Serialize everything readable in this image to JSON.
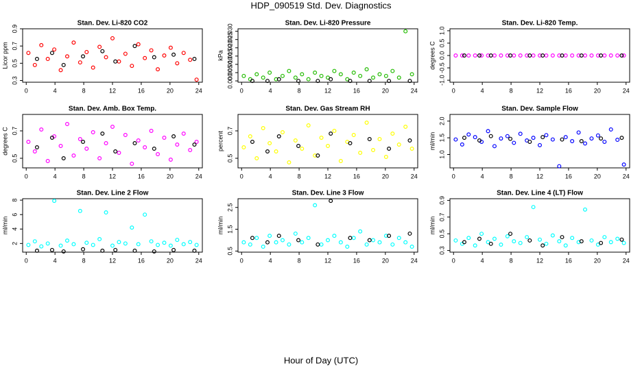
{
  "title": "HDP_090519  Std. Dev. Diagnostics",
  "x_label": "Hour of Day (UTC)",
  "chart_data": [
    {
      "type": "scatter",
      "title": "Stan. Dev. Li-820 CO2",
      "y_label": "Licor ppm",
      "xlim": [
        -0.5,
        24.5
      ],
      "xticks": [
        0,
        4,
        8,
        12,
        16,
        20,
        24
      ],
      "ylim": [
        0.28,
        0.9
      ],
      "yticks": [
        0.3,
        0.5,
        0.7,
        0.9
      ],
      "series": [
        {
          "color": "#ff0000",
          "x": [
            0.3,
            1.2,
            2.1,
            3.0,
            3.9,
            4.8,
            5.7,
            6.6,
            7.5,
            8.4,
            9.3,
            10.2,
            11.1,
            12.0,
            12.9,
            13.8,
            14.7,
            15.6,
            16.5,
            17.4,
            18.3,
            19.2,
            20.1,
            21.0,
            21.9,
            22.8,
            23.7
          ],
          "values": [
            0.62,
            0.48,
            0.71,
            0.55,
            0.66,
            0.42,
            0.58,
            0.74,
            0.51,
            0.63,
            0.45,
            0.69,
            0.57,
            0.79,
            0.52,
            0.61,
            0.47,
            0.72,
            0.56,
            0.65,
            0.43,
            0.59,
            0.68,
            0.5,
            0.62,
            0.54,
            0.31
          ]
        },
        {
          "color": "#000000",
          "x": [
            1.5,
            3.6,
            5.2,
            7.9,
            10.6,
            12.4,
            15.1,
            17.8,
            20.5,
            23.4
          ],
          "values": [
            0.55,
            0.62,
            0.48,
            0.58,
            0.64,
            0.52,
            0.7,
            0.57,
            0.6,
            0.55
          ]
        }
      ]
    },
    {
      "type": "scatter",
      "title": "Stan. Dev. Li-820 Pressure",
      "y_label": "kPa",
      "xlim": [
        -0.5,
        24.5
      ],
      "xticks": [
        0,
        4,
        8,
        12,
        16,
        20,
        24
      ],
      "ylim": [
        -0.0008,
        0.0315
      ],
      "yticks": [
        {
          "value": 0,
          "label": "0.000"
        },
        {
          "value": 0.005,
          "label": "0.005"
        },
        {
          "value": 0.01,
          "label": "0.010"
        },
        {
          "value": 0.015,
          "label": "0.015"
        },
        {
          "value": 0.02,
          "label": "0.020"
        },
        {
          "value": 0.025,
          "label": "0.025"
        },
        {
          "value": 0.03,
          "label": "0.030"
        }
      ],
      "series": [
        {
          "color": "#22bb00",
          "x": [
            0.3,
            1.2,
            2.1,
            3.0,
            3.9,
            4.8,
            5.7,
            6.6,
            7.5,
            8.4,
            9.3,
            10.2,
            11.1,
            12.0,
            12.9,
            13.8,
            14.7,
            15.6,
            16.5,
            17.4,
            18.3,
            19.2,
            20.1,
            21.0,
            21.9,
            22.8,
            23.7
          ],
          "values": [
            0.003,
            0.001,
            0.004,
            0.002,
            0.005,
            0.001,
            0.003,
            0.006,
            0.002,
            0.004,
            0.001,
            0.005,
            0.003,
            0.002,
            0.006,
            0.004,
            0.001,
            0.005,
            0.003,
            0.007,
            0.002,
            0.004,
            0.003,
            0.006,
            0.002,
            0.03,
            0.004
          ]
        },
        {
          "color": "#000000",
          "x": [
            1.5,
            3.6,
            5.2,
            7.9,
            10.6,
            12.4,
            15.1,
            17.8,
            20.5,
            23.4
          ],
          "values": [
            0,
            0,
            0.001,
            0,
            0,
            0.001,
            0,
            0,
            0,
            0
          ]
        }
      ]
    },
    {
      "type": "scatter",
      "title": "Stan. Dev. Li-820 Temp.",
      "y_label": "degrees C",
      "xlim": [
        -0.5,
        24.5
      ],
      "xticks": [
        0,
        4,
        8,
        12,
        16,
        20,
        24
      ],
      "ylim": [
        -1.08,
        1.08
      ],
      "yticks": [
        {
          "value": -1,
          "label": "-1.0"
        },
        {
          "value": -0.5,
          "label": "-0.5"
        },
        {
          "value": 0,
          "label": "0.0"
        },
        {
          "value": 0.5,
          "label": "0.5"
        },
        {
          "value": 1,
          "label": "1.0"
        }
      ],
      "series": [
        {
          "color": "#ff00ff",
          "x": [
            0.3,
            1.2,
            2.1,
            3.0,
            3.9,
            4.8,
            5.7,
            6.6,
            7.5,
            8.4,
            9.3,
            10.2,
            11.1,
            12.0,
            12.9,
            13.8,
            14.7,
            15.6,
            16.5,
            17.4,
            18.3,
            19.2,
            20.1,
            21.0,
            21.9,
            22.8,
            23.7
          ],
          "values": [
            0,
            0,
            0,
            0,
            0,
            0,
            0,
            0,
            0,
            0,
            0,
            0,
            0,
            0,
            0,
            0,
            0,
            0,
            0,
            0,
            0,
            0,
            0,
            0,
            0,
            0,
            0
          ]
        },
        {
          "color": "#000000",
          "x": [
            1.5,
            3.6,
            5.2,
            7.9,
            10.6,
            12.4,
            15.1,
            17.8,
            20.5,
            23.4
          ],
          "values": [
            0,
            0,
            0,
            0,
            0,
            0,
            0,
            0,
            0,
            0
          ]
        }
      ]
    },
    {
      "type": "scatter",
      "title": "Stan. Dev. Amb. Box Temp.",
      "y_label": "degrees C",
      "xlim": [
        -0.5,
        24.5
      ],
      "xticks": [
        0,
        4,
        8,
        12,
        16,
        20,
        24
      ],
      "ylim": [
        0.43,
        0.82
      ],
      "yticks": [
        0.5,
        0.7
      ],
      "series": [
        {
          "color": "#ff00ff",
          "x": [
            0.3,
            1.2,
            2.1,
            3.0,
            3.9,
            4.8,
            5.7,
            6.6,
            7.5,
            8.4,
            9.3,
            10.2,
            11.1,
            12.0,
            12.9,
            13.8,
            14.7,
            15.6,
            16.5,
            17.4,
            18.3,
            19.2,
            20.1,
            21.0,
            21.9,
            22.8,
            23.7
          ],
          "values": [
            0.62,
            0.55,
            0.71,
            0.48,
            0.66,
            0.59,
            0.75,
            0.52,
            0.64,
            0.57,
            0.69,
            0.5,
            0.61,
            0.73,
            0.54,
            0.67,
            0.46,
            0.63,
            0.58,
            0.7,
            0.53,
            0.65,
            0.49,
            0.6,
            0.68,
            0.56,
            0.62
          ]
        },
        {
          "color": "#000000",
          "x": [
            1.5,
            3.6,
            5.2,
            7.9,
            10.6,
            12.4,
            15.1,
            17.8,
            20.5,
            23.4
          ],
          "values": [
            0.58,
            0.65,
            0.5,
            0.62,
            0.68,
            0.55,
            0.61,
            0.57,
            0.66,
            0.6
          ]
        }
      ]
    },
    {
      "type": "scatter",
      "title": "Stan. Dev. Gas Stream RH",
      "y_label": "percent",
      "xlim": [
        -0.5,
        24.5
      ],
      "xticks": [
        0,
        4,
        8,
        12,
        16,
        20,
        24
      ],
      "ylim": [
        0.43,
        0.82
      ],
      "yticks": [
        0.5,
        0.7
      ],
      "series": [
        {
          "color": "#ffff00",
          "x": [
            0.3,
            1.2,
            2.1,
            3.0,
            3.9,
            4.8,
            5.7,
            6.6,
            7.5,
            8.4,
            9.3,
            10.2,
            11.1,
            12.0,
            12.9,
            13.8,
            14.7,
            15.6,
            16.5,
            17.4,
            18.3,
            19.2,
            20.1,
            21.0,
            21.9,
            22.8,
            23.7
          ],
          "values": [
            0.58,
            0.66,
            0.5,
            0.72,
            0.61,
            0.55,
            0.69,
            0.47,
            0.63,
            0.57,
            0.74,
            0.52,
            0.65,
            0.59,
            0.7,
            0.48,
            0.62,
            0.67,
            0.54,
            0.76,
            0.56,
            0.64,
            0.51,
            0.68,
            0.6,
            0.73,
            0.57
          ]
        },
        {
          "color": "#000000",
          "x": [
            1.5,
            3.6,
            5.2,
            7.9,
            10.6,
            12.4,
            15.1,
            17.8,
            20.5,
            23.4
          ],
          "values": [
            0.62,
            0.55,
            0.66,
            0.59,
            0.52,
            0.68,
            0.61,
            0.64,
            0.57,
            0.63
          ]
        }
      ]
    },
    {
      "type": "scatter",
      "title": "Stan. Dev. Sample Flow",
      "y_label": "ml/min",
      "xlim": [
        -0.5,
        24.5
      ],
      "xticks": [
        0,
        4,
        8,
        12,
        16,
        20,
        24
      ],
      "ylim": [
        0.6,
        2.2
      ],
      "yticks": [
        {
          "value": 1,
          "label": "1.0"
        },
        {
          "value": 1.5,
          "label": "1.5"
        },
        {
          "value": 2,
          "label": "2.0"
        }
      ],
      "series": [
        {
          "color": "#0000ff",
          "x": [
            0.3,
            1.2,
            2.1,
            3.0,
            3.9,
            4.8,
            5.7,
            6.6,
            7.5,
            8.4,
            9.3,
            10.2,
            11.1,
            12.0,
            12.9,
            13.8,
            14.7,
            15.6,
            16.5,
            17.4,
            18.3,
            19.2,
            20.1,
            21.0,
            21.9,
            22.8,
            23.7
          ],
          "values": [
            1.45,
            1.3,
            1.6,
            1.52,
            1.38,
            1.7,
            1.25,
            1.48,
            1.55,
            1.35,
            1.62,
            1.42,
            1.5,
            1.28,
            1.58,
            1.45,
            0.65,
            1.52,
            1.4,
            1.66,
            1.33,
            1.48,
            1.57,
            1.38,
            1.75,
            1.44,
            0.7
          ]
        },
        {
          "color": "#000000",
          "x": [
            1.5,
            3.6,
            5.2,
            7.9,
            10.6,
            12.4,
            15.1,
            17.8,
            20.5,
            23.4
          ],
          "values": [
            1.5,
            1.42,
            1.55,
            1.47,
            1.38,
            1.52,
            1.45,
            1.4,
            1.48,
            1.5
          ]
        }
      ]
    },
    {
      "type": "scatter",
      "title": "Stan. Dev. Line 2 Flow",
      "y_label": "ml/min",
      "xlim": [
        -0.5,
        24.5
      ],
      "xticks": [
        0,
        4,
        8,
        12,
        16,
        20,
        24
      ],
      "ylim": [
        0.8,
        8.2
      ],
      "yticks": [
        2,
        4,
        6,
        8
      ],
      "series": [
        {
          "color": "#00ffff",
          "x": [
            0.3,
            1.2,
            2.1,
            3.0,
            3.9,
            4.8,
            5.7,
            6.6,
            7.5,
            8.4,
            9.3,
            10.2,
            11.1,
            12.0,
            12.9,
            13.8,
            14.7,
            15.6,
            16.5,
            17.4,
            18.3,
            19.2,
            20.1,
            21.0,
            21.9,
            22.8,
            23.7
          ],
          "values": [
            1.8,
            2.3,
            1.6,
            2.0,
            7.9,
            1.7,
            2.4,
            1.9,
            6.5,
            2.1,
            1.8,
            2.6,
            6.3,
            1.7,
            2.2,
            2.0,
            4.2,
            1.9,
            6.0,
            2.3,
            1.8,
            2.1,
            1.7,
            2.5,
            1.9,
            2.2,
            1.8
          ]
        },
        {
          "color": "#000000",
          "x": [
            1.5,
            3.6,
            5.2,
            7.9,
            10.6,
            12.4,
            15.1,
            17.8,
            20.5,
            23.4
          ],
          "values": [
            1.0,
            1.1,
            0.9,
            1.2,
            1.0,
            1.1,
            1.0,
            0.9,
            1.1,
            1.0
          ]
        }
      ]
    },
    {
      "type": "scatter",
      "title": "Stan. Dev. Line 3 Flow",
      "y_label": "ml/min",
      "xlim": [
        -0.5,
        24.5
      ],
      "xticks": [
        0,
        4,
        8,
        12,
        16,
        20,
        24
      ],
      "ylim": [
        0.45,
        2.9
      ],
      "yticks": [
        0.5,
        1.5,
        2.5
      ],
      "series": [
        {
          "color": "#00ffff",
          "x": [
            0.3,
            1.2,
            2.1,
            3.0,
            3.9,
            4.8,
            5.7,
            6.6,
            7.5,
            8.4,
            9.3,
            10.2,
            11.1,
            12.0,
            12.9,
            13.8,
            14.7,
            15.6,
            16.5,
            17.4,
            18.3,
            19.2,
            20.1,
            21.0,
            21.9,
            22.8,
            23.7
          ],
          "values": [
            0.9,
            0.8,
            1.1,
            0.7,
            1.2,
            0.9,
            1.0,
            0.8,
            1.3,
            0.9,
            1.1,
            2.6,
            0.8,
            1.0,
            1.2,
            0.9,
            0.7,
            1.1,
            1.4,
            0.8,
            1.0,
            0.9,
            1.2,
            0.8,
            1.1,
            0.9,
            0.7
          ]
        },
        {
          "color": "#000000",
          "x": [
            1.5,
            3.6,
            5.2,
            7.9,
            10.6,
            12.4,
            15.1,
            17.8,
            20.5,
            23.4
          ],
          "values": [
            1.1,
            0.9,
            1.2,
            1.0,
            0.8,
            2.8,
            1.1,
            1.0,
            1.2,
            1.3
          ]
        }
      ]
    },
    {
      "type": "scatter",
      "title": "Stan. Dev. Line 4 (LT) Flow",
      "y_label": "ml/min",
      "xlim": [
        -0.5,
        24.5
      ],
      "xticks": [
        0,
        4,
        8,
        12,
        16,
        20,
        24
      ],
      "ylim": [
        0.28,
        0.92
      ],
      "yticks": [
        0.3,
        0.5,
        0.7,
        0.9
      ],
      "series": [
        {
          "color": "#00ffff",
          "x": [
            0.3,
            1.2,
            2.1,
            3.0,
            3.9,
            4.8,
            5.7,
            6.6,
            7.5,
            8.4,
            9.3,
            10.2,
            11.1,
            12.0,
            12.9,
            13.8,
            14.7,
            15.6,
            16.5,
            17.4,
            18.3,
            19.2,
            20.1,
            21.0,
            21.9,
            22.8,
            23.7
          ],
          "values": [
            0.42,
            0.38,
            0.45,
            0.36,
            0.5,
            0.4,
            0.44,
            0.37,
            0.47,
            0.41,
            0.39,
            0.46,
            0.82,
            0.43,
            0.38,
            0.48,
            0.41,
            0.36,
            0.45,
            0.4,
            0.79,
            0.42,
            0.37,
            0.46,
            0.4,
            0.44,
            0.39
          ]
        },
        {
          "color": "#000000",
          "x": [
            1.5,
            3.6,
            5.2,
            7.9,
            10.6,
            12.4,
            15.1,
            17.8,
            20.5,
            23.4
          ],
          "values": [
            0.4,
            0.44,
            0.38,
            0.5,
            0.42,
            0.36,
            0.46,
            0.41,
            0.39,
            0.43
          ]
        }
      ]
    }
  ]
}
